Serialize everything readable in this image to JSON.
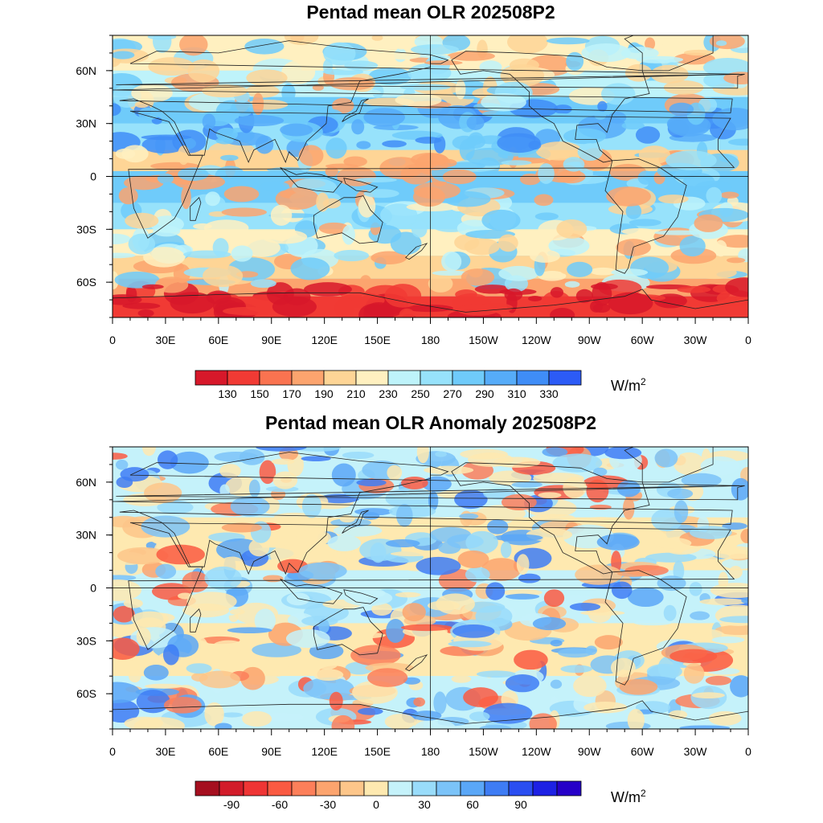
{
  "maps": [
    {
      "title": "Pentad mean OLR 202508P2",
      "variable": "Outgoing Longwave Radiation (pentad mean)",
      "lon_ticks": [
        "0",
        "30E",
        "60E",
        "90E",
        "120E",
        "150E",
        "180",
        "150W",
        "120W",
        "90W",
        "60W",
        "30W",
        "0"
      ],
      "lat_ticks": [
        "60N",
        "30N",
        "0",
        "30S",
        "60S"
      ],
      "colorbar": {
        "colors": [
          "#d7182a",
          "#f13a34",
          "#fa7350",
          "#fca46e",
          "#fed596",
          "#fff0c0",
          "#bef3fa",
          "#97e2fb",
          "#6fcbfa",
          "#56acf9",
          "#3f8df7",
          "#2c5bf6"
        ],
        "labels": [
          "130",
          "150",
          "170",
          "190",
          "210",
          "230",
          "250",
          "270",
          "290",
          "310",
          "330"
        ],
        "units": "W/m",
        "units_exp": "2"
      },
      "feature_colors": {
        "low": "#e8404a",
        "mid": "#fed596",
        "high": "#6fcbfa"
      }
    },
    {
      "title": "Pentad mean OLR Anomaly 202508P2",
      "variable": "OLR anomaly",
      "lon_ticks": [
        "0",
        "30E",
        "60E",
        "90E",
        "120E",
        "150E",
        "180",
        "150W",
        "120W",
        "90W",
        "60W",
        "30W",
        "0"
      ],
      "lat_ticks": [
        "60N",
        "30N",
        "0",
        "30S",
        "60S"
      ],
      "colorbar": {
        "colors": [
          "#a50f1f",
          "#d21c2a",
          "#ef3535",
          "#fa5a42",
          "#fc7f5a",
          "#fca46e",
          "#fdc68a",
          "#fee9b0",
          "#c5f2fa",
          "#99dcfa",
          "#7bc3f8",
          "#5aa7f7",
          "#3e7cf4",
          "#2a4ef1",
          "#1d21e4",
          "#2600c8"
        ],
        "labels": [
          "-90",
          "-60",
          "-30",
          "0",
          "30",
          "60",
          "90"
        ],
        "units": "W/m",
        "units_exp": "2"
      },
      "feature_colors": {
        "low": "#fa5a42",
        "mid": "#fee9b0",
        "high": "#99dcfa"
      }
    }
  ]
}
